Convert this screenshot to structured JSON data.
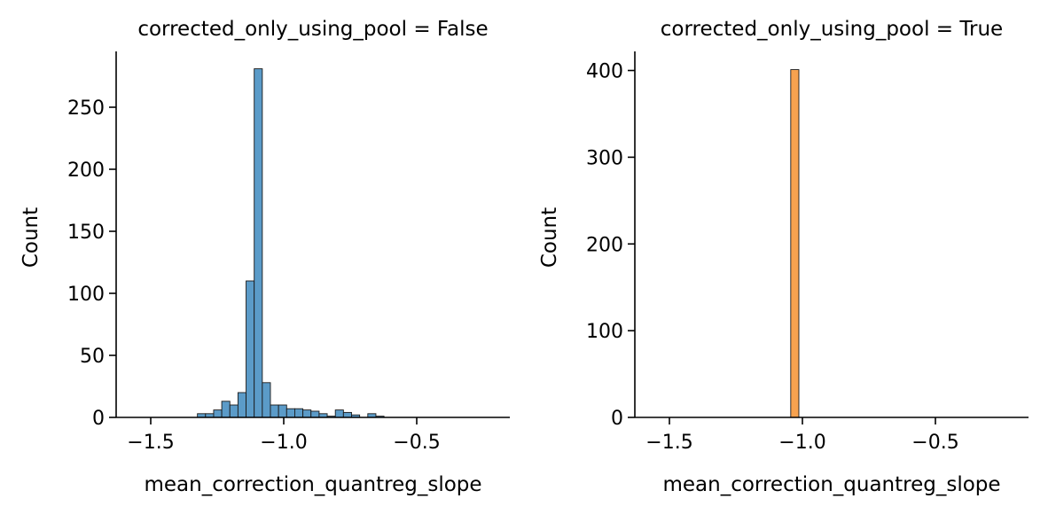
{
  "chart_data": [
    {
      "type": "histogram",
      "title": "corrected_only_using_pool = False",
      "xlabel": "mean_correction_quantreg_slope",
      "ylabel": "Count",
      "xlim": [
        -1.63,
        -0.15
      ],
      "ylim": [
        0,
        295
      ],
      "xticks": [
        -1.5,
        -1.0,
        -0.5
      ],
      "xtick_labels": [
        "−1.5",
        "−1.0",
        "−0.5"
      ],
      "yticks": [
        0,
        50,
        100,
        150,
        200,
        250
      ],
      "ytick_labels": [
        "0",
        "50",
        "100",
        "150",
        "200",
        "250"
      ],
      "bin_width": 0.0305,
      "bin_starts": [
        -1.3245,
        -1.294,
        -1.2635,
        -1.233,
        -1.2025,
        -1.172,
        -1.1415,
        -1.111,
        -1.0805,
        -1.05,
        -1.0195,
        -0.989,
        -0.9585,
        -0.928,
        -0.8975,
        -0.867,
        -0.8365,
        -0.806,
        -0.7755,
        -0.745,
        -0.7145,
        -0.684,
        -0.6535,
        -0.623,
        -0.5925,
        -0.562,
        -0.5315,
        -0.501,
        -0.4705,
        -0.44,
        -0.4095,
        -0.379,
        -0.3485,
        -0.318,
        -0.2875,
        -0.257,
        -0.2265,
        -0.196
      ],
      "counts": [
        3,
        3,
        6,
        13,
        10,
        20,
        110,
        281,
        28,
        10,
        10,
        7,
        7,
        6,
        5,
        3,
        1,
        6,
        4,
        2,
        0,
        3,
        1,
        0,
        0,
        0,
        0,
        0,
        0,
        0,
        0,
        0,
        0,
        0,
        0,
        0,
        0,
        0
      ],
      "color": "#5b9bc8",
      "grid": false
    },
    {
      "type": "histogram",
      "title": "corrected_only_using_pool = True",
      "xlabel": "mean_correction_quantreg_slope",
      "ylabel": "Count",
      "xlim": [
        -1.63,
        -0.15
      ],
      "ylim": [
        0,
        422
      ],
      "xticks": [
        -1.5,
        -1.0,
        -0.5
      ],
      "xtick_labels": [
        "−1.5",
        "−1.0",
        "−0.5"
      ],
      "yticks": [
        0,
        100,
        200,
        300,
        400
      ],
      "ytick_labels": [
        "0",
        "100",
        "200",
        "300",
        "400"
      ],
      "bin_width": 0.0305,
      "bin_starts": [
        -1.0439
      ],
      "counts": [
        401
      ],
      "color": "#f7a24f",
      "grid": false
    }
  ]
}
